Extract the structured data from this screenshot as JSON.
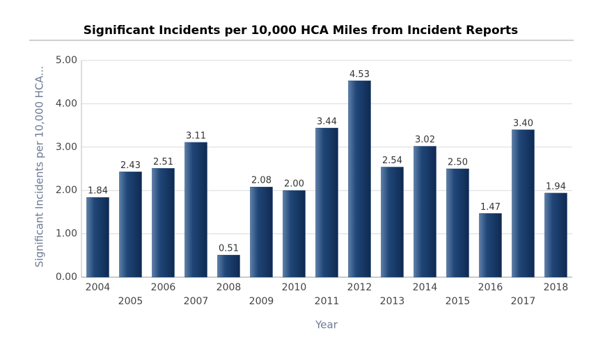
{
  "chart_data": {
    "type": "bar",
    "title": "Significant Incidents per 10,000 HCA Miles from Incident Reports",
    "x_label": "Year",
    "y_label": "Significant Incidents per 10,000 HCA...",
    "categories": [
      "2004",
      "2005",
      "2006",
      "2007",
      "2008",
      "2009",
      "2010",
      "2011",
      "2012",
      "2013",
      "2014",
      "2015",
      "2016",
      "2017",
      "2018"
    ],
    "values": [
      1.84,
      2.43,
      2.51,
      3.11,
      0.51,
      2.08,
      2,
      3.44,
      4.53,
      2.54,
      3.02,
      2.5,
      1.47,
      3.4,
      1.94
    ],
    "value_labels": [
      "1.84",
      "2.43",
      "2.51",
      "3.11",
      "0.51",
      "2.08",
      "2.00",
      "3.44",
      "4.53",
      "2.54",
      "3.02",
      "2.50",
      "1.47",
      "3.40",
      "1.94"
    ],
    "color": "#1f4677",
    "ylim": [
      0,
      5
    ],
    "yticks": [
      {
        "value": 0,
        "label": "0.00"
      },
      {
        "value": 1,
        "label": "1.00"
      },
      {
        "value": 2,
        "label": "2.00"
      },
      {
        "value": 3,
        "label": "3.00"
      },
      {
        "value": 4,
        "label": "4.00"
      },
      {
        "value": 5,
        "label": "5.00"
      }
    ],
    "grid": true
  }
}
